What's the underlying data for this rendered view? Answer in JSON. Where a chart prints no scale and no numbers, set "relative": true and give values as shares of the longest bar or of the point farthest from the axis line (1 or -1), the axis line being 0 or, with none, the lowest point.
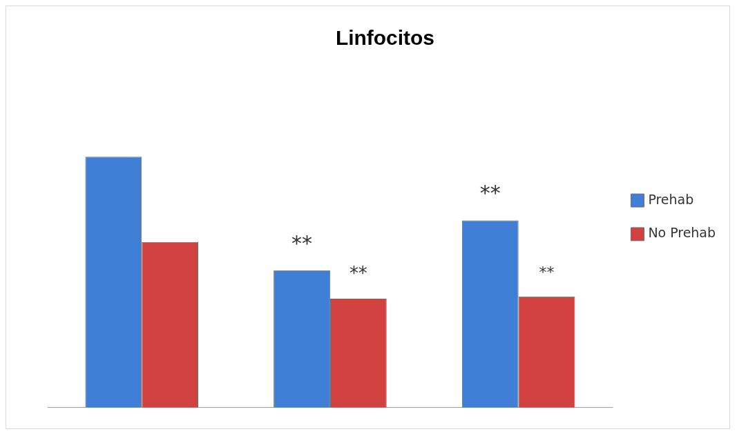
{
  "chart_data": {
    "type": "bar",
    "title": "Linfocitos",
    "relative": true,
    "categories": [
      null,
      null,
      null
    ],
    "series": [
      {
        "name": "Prehab",
        "color": "#3f7fd6",
        "values": [
          1,
          0.547,
          0.746
        ]
      },
      {
        "name": "No Prehab",
        "color": "#d0413f",
        "values": [
          0.66,
          0.434,
          0.443
        ]
      }
    ],
    "annotations": [
      "**",
      "**",
      "**",
      "**"
    ],
    "legend": "right",
    "grid": false
  }
}
